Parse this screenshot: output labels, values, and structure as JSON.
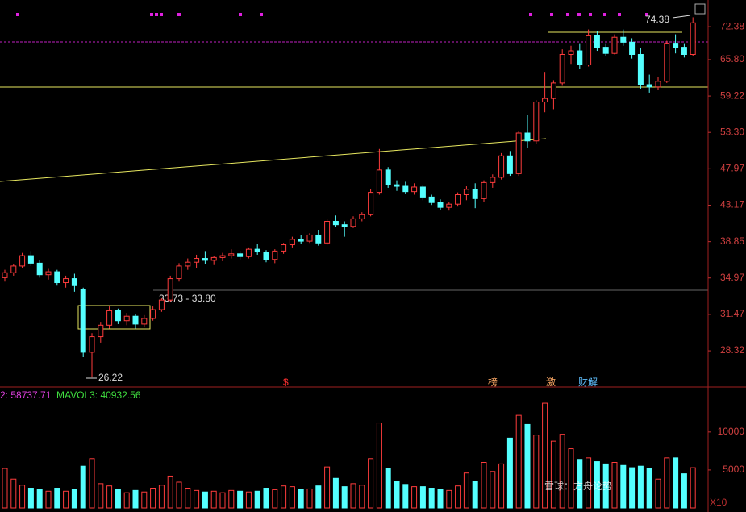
{
  "chart_data": {
    "type": "candlestick",
    "legend_texts": [
      "2: 58737.71",
      "MAVOL3: 40932.56"
    ],
    "annotations": [
      "33.73 - 33.80",
      "26.22",
      "74.38"
    ],
    "event_markers": [
      "$",
      "榜",
      "激",
      "财解"
    ],
    "watermark": "雪球：方舟论势",
    "scale_button": "X10",
    "log_scale": true,
    "ylim": [
      25.5,
      78.2
    ],
    "yticks": [
      72.38,
      {
        "value": 65.8,
        "label": "65.80"
      },
      59.22,
      {
        "value": 53.3,
        "label": "53.30"
      },
      47.97,
      43.17,
      38.85,
      34.97,
      31.47,
      28.32
    ],
    "up_color": "#ff3c3c",
    "down_color": "#54ffff",
    "ohlc": [
      [
        35.0,
        35.8,
        34.6,
        35.5
      ],
      [
        35.5,
        36.4,
        35.2,
        36.2
      ],
      [
        36.2,
        37.6,
        36.0,
        37.3
      ],
      [
        37.3,
        37.8,
        36.2,
        36.5
      ],
      [
        36.5,
        36.8,
        35.0,
        35.3
      ],
      [
        35.3,
        35.9,
        34.8,
        35.6
      ],
      [
        35.6,
        35.8,
        34.2,
        34.5
      ],
      [
        34.5,
        35.2,
        34.0,
        34.9
      ],
      [
        34.9,
        35.4,
        33.6,
        34.2
      ],
      [
        33.8,
        34.0,
        27.8,
        28.2
      ],
      [
        28.2,
        29.8,
        26.22,
        29.5
      ],
      [
        29.5,
        30.8,
        29.0,
        30.5
      ],
      [
        30.5,
        32.2,
        30.2,
        31.8
      ],
      [
        31.8,
        32.0,
        30.6,
        30.9
      ],
      [
        30.9,
        31.6,
        30.5,
        31.3
      ],
      [
        31.3,
        31.5,
        30.2,
        30.6
      ],
      [
        30.6,
        31.4,
        30.3,
        31.1
      ],
      [
        31.1,
        32.2,
        30.9,
        31.9
      ],
      [
        31.9,
        33.0,
        31.7,
        32.8
      ],
      [
        32.8,
        35.2,
        32.6,
        34.9
      ],
      [
        34.9,
        36.5,
        34.6,
        36.2
      ],
      [
        36.2,
        37.0,
        35.8,
        36.6
      ],
      [
        36.6,
        37.4,
        36.0,
        37.0
      ],
      [
        37.0,
        37.8,
        36.4,
        36.8
      ],
      [
        36.8,
        37.3,
        36.3,
        37.1
      ],
      [
        37.1,
        37.6,
        36.7,
        37.3
      ],
      [
        37.3,
        38.0,
        37.0,
        37.5
      ],
      [
        37.5,
        37.8,
        36.9,
        37.2
      ],
      [
        37.2,
        38.2,
        37.0,
        38.0
      ],
      [
        38.0,
        38.6,
        37.4,
        37.7
      ],
      [
        37.7,
        37.9,
        36.6,
        36.9
      ],
      [
        36.9,
        38.0,
        36.5,
        37.8
      ],
      [
        37.8,
        38.7,
        37.5,
        38.5
      ],
      [
        38.5,
        39.4,
        38.2,
        39.1
      ],
      [
        39.1,
        39.6,
        38.6,
        38.9
      ],
      [
        38.9,
        39.8,
        38.7,
        39.6
      ],
      [
        39.6,
        40.2,
        38.4,
        38.7
      ],
      [
        38.7,
        41.5,
        38.5,
        41.2
      ],
      [
        41.2,
        41.9,
        40.5,
        40.8
      ],
      [
        40.8,
        41.2,
        39.4,
        40.6
      ],
      [
        40.6,
        41.8,
        40.4,
        41.5
      ],
      [
        41.5,
        42.3,
        41.2,
        42.0
      ],
      [
        42.0,
        45.2,
        41.8,
        44.8
      ],
      [
        44.8,
        50.8,
        44.5,
        47.8
      ],
      [
        47.8,
        48.2,
        45.4,
        45.8
      ],
      [
        45.8,
        46.4,
        45.0,
        45.6
      ],
      [
        45.6,
        46.2,
        44.6,
        44.9
      ],
      [
        44.9,
        46.0,
        44.5,
        45.5
      ],
      [
        45.5,
        45.8,
        43.8,
        44.2
      ],
      [
        44.2,
        44.5,
        43.2,
        43.5
      ],
      [
        43.5,
        43.9,
        42.6,
        42.9
      ],
      [
        42.9,
        43.6,
        42.5,
        43.3
      ],
      [
        43.3,
        44.8,
        43.0,
        44.5
      ],
      [
        44.5,
        45.6,
        43.8,
        45.2
      ],
      [
        45.2,
        46.0,
        42.8,
        44.0
      ],
      [
        44.0,
        46.4,
        43.6,
        46.1
      ],
      [
        46.1,
        47.2,
        45.4,
        46.8
      ],
      [
        46.8,
        50.2,
        46.5,
        49.8
      ],
      [
        49.8,
        50.5,
        47.0,
        47.3
      ],
      [
        47.3,
        53.5,
        47.0,
        53.2
      ],
      [
        53.2,
        56.0,
        51.0,
        52.0
      ],
      [
        52.0,
        58.5,
        51.5,
        58.2
      ],
      [
        58.2,
        63.5,
        56.5,
        58.8
      ],
      [
        58.8,
        62.0,
        57.0,
        61.5
      ],
      [
        61.5,
        67.8,
        61.0,
        66.8
      ],
      [
        66.8,
        68.5,
        65.0,
        67.5
      ],
      [
        67.5,
        69.0,
        64.0,
        64.8
      ],
      [
        64.8,
        71.8,
        64.5,
        70.5
      ],
      [
        70.5,
        71.5,
        67.5,
        68.2
      ],
      [
        68.2,
        69.0,
        66.5,
        67.0
      ],
      [
        67.0,
        70.8,
        66.8,
        70.2
      ],
      [
        70.2,
        71.8,
        68.5,
        69.2
      ],
      [
        69.2,
        70.0,
        66.0,
        66.8
      ],
      [
        66.8,
        68.0,
        60.5,
        61.2
      ],
      [
        61.2,
        63.0,
        59.8,
        60.8
      ],
      [
        60.8,
        62.5,
        60.2,
        61.8
      ],
      [
        61.8,
        69.5,
        61.5,
        69.0
      ],
      [
        69.0,
        70.8,
        67.0,
        68.2
      ],
      [
        68.2,
        69.0,
        66.2,
        66.8
      ],
      [
        66.8,
        74.38,
        66.5,
        73.2
      ]
    ],
    "volume": [
      5200,
      3800,
      3000,
      2600,
      2400,
      2200,
      2600,
      2200,
      2400,
      5500,
      6500,
      3200,
      2900,
      2400,
      2000,
      2300,
      2100,
      2600,
      3000,
      4200,
      3400,
      2600,
      2300,
      2100,
      2200,
      2000,
      2300,
      2200,
      2100,
      2200,
      2600,
      2400,
      2900,
      2800,
      2400,
      2500,
      2900,
      5400,
      3900,
      2800,
      3200,
      3000,
      6500,
      11200,
      5200,
      3500,
      3100,
      2800,
      2800,
      2600,
      2400,
      2300,
      2900,
      4600,
      3500,
      6000,
      4800,
      5800,
      9200,
      12200,
      11000,
      9600,
      13800,
      8800,
      9700,
      7800,
      6400,
      6600,
      6100,
      5800,
      6000,
      5600,
      5300,
      5500,
      5200,
      3800,
      6600,
      6600,
      4500,
      5300
    ],
    "vol_ylim": [
      0,
      15400
    ],
    "vol_yticks": [
      10000,
      5000
    ]
  }
}
